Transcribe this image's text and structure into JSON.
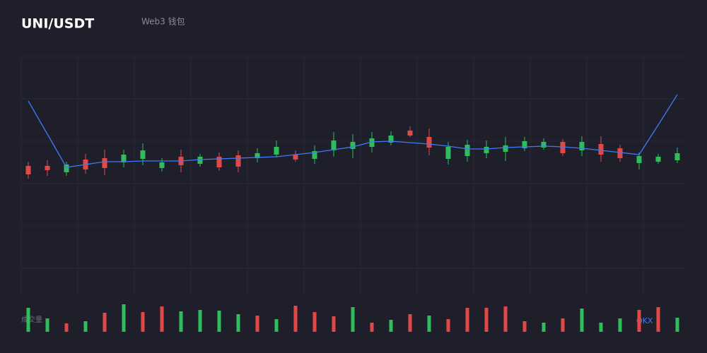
{
  "chart_data": {
    "type": "candlestick",
    "title": "UNI/USDT",
    "subtitle": "Web3 钱包",
    "volume_label": "成交量",
    "watermark": "OKX",
    "up_color": "#2fbd5c",
    "down_color": "#e34848",
    "line_color": "#3b7cf5",
    "ylim": [
      22,
      360
    ],
    "open": [
      205,
      205,
      196,
      214,
      216,
      210,
      215,
      202,
      218,
      208,
      218,
      220,
      216,
      221,
      221,
      215,
      227,
      229,
      232,
      238,
      255,
      246,
      215,
      219,
      223,
      225,
      230,
      231,
      239,
      227,
      236,
      230,
      209,
      211,
      213
    ],
    "close": [
      193,
      199,
      207,
      200,
      202,
      221,
      227,
      210,
      206,
      218,
      203,
      204,
      223,
      232,
      214,
      226,
      241,
      239,
      244,
      248,
      248,
      231,
      232,
      235,
      232,
      234,
      240,
      239,
      223,
      239,
      221,
      216,
      219,
      218,
      223
    ],
    "high": [
      211,
      213,
      211,
      222,
      228,
      228,
      237,
      216,
      228,
      222,
      224,
      227,
      230,
      241,
      227,
      234,
      253,
      250,
      253,
      254,
      261,
      258,
      239,
      242,
      241,
      246,
      246,
      244,
      243,
      247,
      247,
      235,
      224,
      222,
      231
    ],
    "low": [
      187,
      191,
      191,
      194,
      192,
      203,
      206,
      197,
      196,
      204,
      198,
      196,
      210,
      217,
      211,
      208,
      218,
      216,
      224,
      234,
      246,
      220,
      207,
      211,
      216,
      212,
      226,
      228,
      219,
      219,
      211,
      211,
      200,
      208,
      209
    ],
    "line": [
      297,
      250,
      203,
      207,
      211,
      211,
      212,
      212,
      212,
      214,
      215,
      216,
      217,
      218,
      221,
      224,
      228,
      232,
      239,
      240,
      238,
      236,
      233,
      229,
      229,
      231,
      232,
      233,
      232,
      230,
      227,
      224,
      221,
      263,
      306
    ],
    "volume_ylim": [
      0,
      40
    ],
    "volume": [
      34,
      19,
      12,
      15,
      27,
      39,
      28,
      36,
      29,
      31,
      30,
      25,
      23,
      18,
      37,
      28,
      22,
      35,
      13,
      17,
      25,
      23,
      18,
      34,
      34,
      36,
      15,
      13,
      19,
      33,
      13,
      19,
      31,
      35,
      20
    ],
    "volume_colors": [
      "#2fbd5c",
      "#2fbd5c",
      "#e34848",
      "#2fbd5c",
      "#e34848",
      "#2fbd5c",
      "#e34848",
      "#e34848",
      "#2fbd5c",
      "#2fbd5c",
      "#2fbd5c",
      "#2fbd5c",
      "#e34848",
      "#2fbd5c",
      "#e34848",
      "#e34848",
      "#e34848",
      "#2fbd5c",
      "#e34848",
      "#2fbd5c",
      "#e34848",
      "#2fbd5c",
      "#e34848",
      "#e34848",
      "#e34848",
      "#e34848",
      "#e34848",
      "#2fbd5c",
      "#e34848",
      "#2fbd5c",
      "#2fbd5c",
      "#2fbd5c",
      "#e34848",
      "#e34848",
      "#2fbd5c"
    ]
  }
}
